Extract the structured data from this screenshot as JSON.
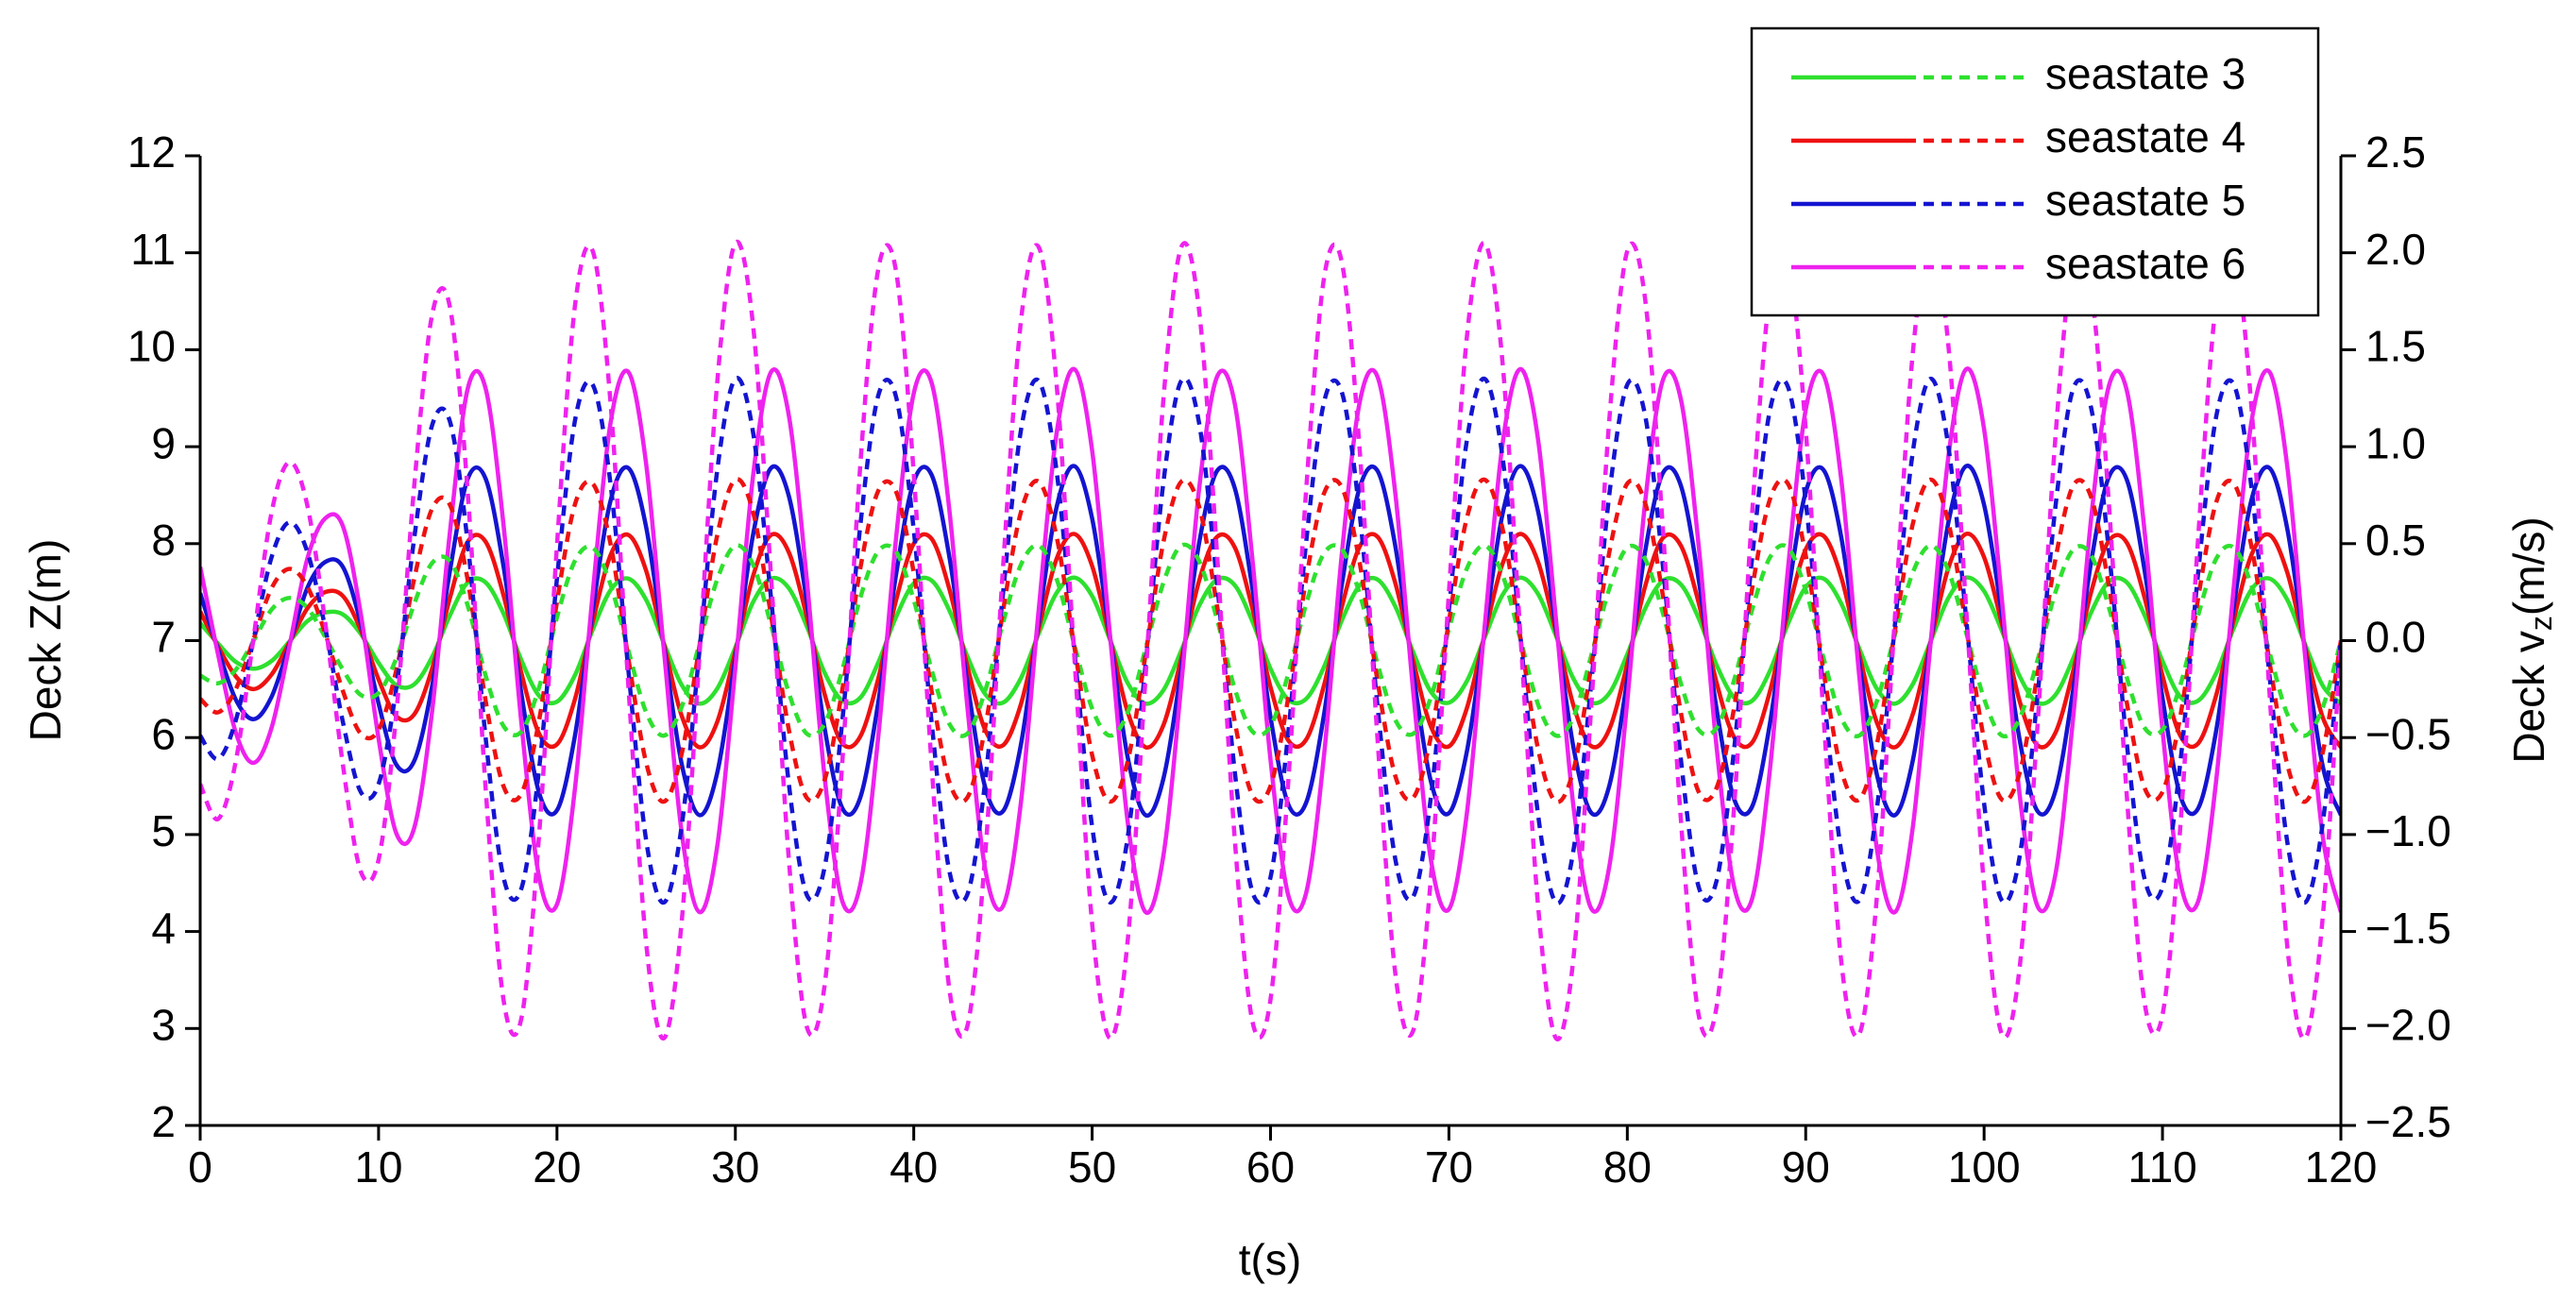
{
  "chart_data": {
    "type": "line",
    "xlabel": "t(s)",
    "ylabel": "Deck Z(m)",
    "y2label": [
      "Deck v",
      "z",
      "(m/s)"
    ],
    "xlim": [
      0,
      120
    ],
    "xticks": [
      0,
      10,
      20,
      30,
      40,
      50,
      60,
      70,
      80,
      90,
      100,
      110,
      120
    ],
    "ylim": [
      2,
      12
    ],
    "yticks": [
      2,
      3,
      4,
      5,
      6,
      7,
      8,
      9,
      10,
      11,
      12
    ],
    "y2lim": [
      -2.5,
      2.5
    ],
    "y2ticks": [
      {
        "value": -2.5,
        "label": "−2.5"
      },
      {
        "value": -2.0,
        "label": "−2.0"
      },
      {
        "value": -1.5,
        "label": "−1.5"
      },
      {
        "value": -1.0,
        "label": "−1.0"
      },
      {
        "value": -0.5,
        "label": "−0.5"
      },
      {
        "value": 0,
        "label": "0.0"
      },
      0.5,
      {
        "value": 1,
        "label": "1.0"
      },
      1.5,
      {
        "value": 2,
        "label": "2.0"
      },
      2.5
    ],
    "legend": "upper right",
    "grid": false,
    "x": [
      0,
      1,
      2,
      3,
      4,
      5,
      6,
      7,
      8,
      9,
      10,
      11,
      12,
      13,
      14,
      15,
      16,
      17,
      18,
      19,
      20,
      21,
      22,
      23,
      24,
      25,
      26,
      27,
      28,
      29,
      30,
      31,
      32,
      33,
      34,
      35,
      36,
      37,
      38,
      39,
      40,
      41,
      42,
      43,
      44,
      45,
      46,
      47,
      48,
      49,
      50,
      51,
      52,
      53,
      54,
      55,
      56,
      57,
      58,
      59,
      60,
      61,
      62,
      63,
      64,
      65,
      66,
      67,
      68,
      69,
      70,
      71,
      72,
      73,
      74,
      75,
      76,
      77,
      78,
      79,
      80,
      81,
      82,
      83,
      84,
      85,
      86,
      87,
      88,
      89,
      90,
      91,
      92,
      93,
      94,
      95,
      96,
      97,
      98,
      99,
      100,
      101,
      102,
      103,
      104,
      105,
      106,
      107,
      108,
      109,
      110,
      111,
      112,
      113,
      114,
      115,
      116,
      117,
      118,
      119,
      120
    ],
    "series": [
      {
        "name": "seastate 3",
        "color": "#2ee02e",
        "values": [
          7.18,
          6.97,
          6.78,
          6.71,
          6.79,
          6.99,
          7.2,
          7.29,
          7.27,
          7.07,
          6.77,
          6.54,
          6.55,
          6.83,
          7.26,
          7.6,
          7.6,
          7.28,
          6.8,
          6.43,
          6.37,
          6.64,
          7.11,
          7.52,
          7.64,
          7.42,
          6.97,
          6.54,
          6.35,
          6.51,
          6.93,
          7.4,
          7.64,
          7.54,
          7.15,
          6.67,
          6.38,
          6.41,
          6.77,
          7.24,
          7.59,
          7.62,
          7.31,
          6.84,
          6.45,
          6.36,
          6.61,
          7.07,
          7.49,
          7.65,
          7.46,
          7.01,
          6.56,
          6.35,
          6.49,
          6.9,
          7.36,
          7.63,
          7.57,
          7.19,
          6.71,
          6.39,
          6.4,
          6.73,
          7.21,
          7.57,
          7.63,
          7.35,
          6.88,
          6.47,
          6.36,
          6.58,
          7.03,
          7.47,
          7.65,
          7.48,
          7.05,
          6.6,
          6.36,
          6.46,
          6.86,
          7.33,
          7.62,
          7.58,
          7.23,
          6.75,
          6.41,
          6.38,
          6.69,
          7.17,
          7.55,
          7.64,
          7.38,
          6.92,
          6.5,
          6.35,
          6.55,
          6.99,
          7.44,
          7.65,
          7.51,
          7.1,
          6.63,
          6.36,
          6.44,
          6.82,
          7.29,
          7.61,
          7.6,
          7.26,
          6.79,
          6.42,
          6.38,
          6.66,
          7.13,
          7.53,
          7.64,
          7.42,
          6.96,
          6.53,
          6.35
        ]
      },
      {
        "name": "seastate 4",
        "color": "#ee1111",
        "values": [
          7.3,
          6.94,
          6.63,
          6.5,
          6.65,
          6.98,
          7.33,
          7.5,
          7.46,
          7.11,
          6.6,
          6.22,
          6.24,
          6.71,
          7.44,
          8.02,
          8.02,
          7.47,
          6.67,
          6.04,
          5.93,
          6.39,
          7.19,
          7.88,
          8.09,
          7.72,
          6.96,
          6.22,
          5.9,
          6.17,
          6.89,
          7.67,
          8.09,
          7.91,
          7.25,
          6.45,
          5.94,
          6.01,
          6.6,
          7.41,
          8.0,
          8.05,
          7.53,
          6.74,
          6.08,
          5.92,
          6.34,
          7.12,
          7.84,
          8.1,
          7.77,
          7.02,
          6.26,
          5.9,
          6.13,
          6.82,
          7.62,
          8.07,
          7.96,
          7.32,
          6.52,
          5.97,
          5.98,
          6.54,
          7.35,
          7.97,
          8.07,
          7.59,
          6.79,
          6.11,
          5.91,
          6.3,
          7.06,
          7.79,
          8.1,
          7.81,
          7.09,
          6.32,
          5.91,
          6.09,
          6.76,
          7.56,
          8.06,
          7.98,
          7.39,
          6.57,
          6.0,
          5.95,
          6.48,
          7.29,
          7.94,
          8.08,
          7.65,
          6.86,
          6.15,
          5.9,
          6.24,
          6.99,
          7.75,
          8.1,
          7.86,
          7.17,
          6.37,
          5.92,
          6.05,
          6.69,
          7.5,
          8.03,
          8.01,
          7.44,
          6.64,
          6.02,
          5.94,
          6.43,
          7.22,
          7.89,
          8.09,
          7.7,
          6.93,
          6.2,
          5.9
        ]
      },
      {
        "name": "seastate 5",
        "color": "#1414d0",
        "values": [
          7.49,
          6.91,
          6.39,
          6.19,
          6.42,
          6.96,
          7.54,
          7.81,
          7.76,
          7.18,
          6.35,
          5.72,
          5.76,
          6.53,
          7.72,
          8.67,
          8.67,
          7.77,
          6.46,
          5.43,
          5.25,
          6.01,
          7.31,
          8.44,
          8.78,
          8.17,
          6.93,
          5.72,
          5.2,
          5.65,
          6.82,
          8.1,
          8.78,
          8.49,
          7.41,
          6.1,
          5.27,
          5.38,
          6.35,
          7.67,
          8.64,
          8.71,
          7.86,
          6.57,
          5.49,
          5.24,
          5.92,
          7.2,
          8.37,
          8.8,
          8.26,
          7.04,
          5.79,
          5.2,
          5.58,
          6.71,
          8.01,
          8.75,
          8.57,
          7.52,
          6.21,
          5.31,
          5.33,
          6.24,
          7.58,
          8.58,
          8.75,
          7.97,
          6.66,
          5.54,
          5.22,
          5.85,
          7.09,
          8.3,
          8.8,
          8.33,
          7.14,
          5.88,
          5.22,
          5.51,
          6.6,
          7.92,
          8.73,
          8.6,
          7.63,
          6.3,
          5.36,
          5.29,
          6.15,
          7.47,
          8.53,
          8.76,
          8.06,
          6.77,
          5.61,
          5.2,
          5.76,
          6.98,
          8.22,
          8.8,
          8.4,
          7.27,
          5.97,
          5.24,
          5.45,
          6.5,
          7.81,
          8.69,
          8.66,
          7.72,
          6.41,
          5.4,
          5.27,
          6.06,
          7.36,
          8.46,
          8.78,
          8.15,
          6.89,
          5.69,
          5.2
        ]
      },
      {
        "name": "seastate 6",
        "color": "#ee22ee",
        "values": [
          7.76,
          6.86,
          6.05,
          5.74,
          6.1,
          6.94,
          7.84,
          8.26,
          8.18,
          7.28,
          5.99,
          5.01,
          5.07,
          6.27,
          8.12,
          9.6,
          9.6,
          8.2,
          6.16,
          4.56,
          4.28,
          5.46,
          7.48,
          9.24,
          9.77,
          8.82,
          6.89,
          5.01,
          4.2,
          4.9,
          6.72,
          8.71,
          9.77,
          9.32,
          7.64,
          5.6,
          4.31,
          4.48,
          5.99,
          8.04,
          9.55,
          9.66,
          8.34,
          6.33,
          4.65,
          4.26,
          5.32,
          7.31,
          9.13,
          9.8,
          8.96,
          7.06,
          5.12,
          4.2,
          4.79,
          6.55,
          8.57,
          9.72,
          9.44,
          7.81,
          5.77,
          4.37,
          4.4,
          5.82,
          7.9,
          9.46,
          9.72,
          8.51,
          6.47,
          4.73,
          4.23,
          5.21,
          7.14,
          9.02,
          9.8,
          9.07,
          7.22,
          5.26,
          4.23,
          4.68,
          6.38,
          8.43,
          9.69,
          9.49,
          7.98,
          5.91,
          4.45,
          4.34,
          5.68,
          7.73,
          9.38,
          9.74,
          8.65,
          6.64,
          4.84,
          4.2,
          5.07,
          6.97,
          8.9,
          9.8,
          9.18,
          7.42,
          5.4,
          4.26,
          4.59,
          6.22,
          8.26,
          9.63,
          9.58,
          8.12,
          6.08,
          4.51,
          4.31,
          5.54,
          7.56,
          9.27,
          9.77,
          8.79,
          6.83,
          4.96,
          4.2
        ]
      },
      {
        "color": "#2ee02e",
        "axis": "y2",
        "dashed": true,
        "values": [
          -0.18,
          -0.22,
          -0.15,
          0.0,
          0.16,
          0.22,
          0.17,
          0.02,
          -0.15,
          -0.28,
          -0.27,
          -0.09,
          0.19,
          0.4,
          0.41,
          0.18,
          -0.18,
          -0.44,
          -0.47,
          -0.24,
          0.12,
          0.41,
          0.48,
          0.29,
          -0.05,
          -0.37,
          -0.49,
          -0.34,
          -0.01,
          0.32,
          0.49,
          0.39,
          0.08,
          -0.27,
          -0.48,
          -0.43,
          -0.15,
          0.22,
          0.46,
          0.46,
          0.21,
          -0.15,
          -0.43,
          -0.48,
          -0.26,
          0.09,
          0.39,
          0.49,
          0.32,
          -0.02,
          -0.35,
          -0.49,
          -0.37,
          -0.04,
          0.3,
          0.49,
          0.41,
          0.11,
          -0.25,
          -0.47,
          -0.44,
          -0.17,
          0.19,
          0.45,
          0.47,
          0.24,
          -0.12,
          -0.41,
          -0.48,
          -0.29,
          0.06,
          0.37,
          0.49,
          0.34,
          0.01,
          -0.33,
          -0.49,
          -0.39,
          -0.07,
          0.27,
          0.48,
          0.42,
          0.14,
          -0.22,
          -0.46,
          -0.45,
          -0.2,
          0.16,
          0.43,
          0.48,
          0.26,
          -0.09,
          -0.4,
          -0.49,
          -0.31,
          0.03,
          0.35,
          0.49,
          0.36,
          0.04,
          -0.3,
          -0.49,
          -0.4,
          -0.1,
          0.25,
          0.47,
          0.44,
          0.17,
          -0.19,
          -0.45,
          -0.46,
          -0.23,
          0.13,
          0.42,
          0.48,
          0.28,
          -0.06,
          -0.38,
          -0.49,
          -0.34,
          0.0
        ]
      },
      {
        "color": "#ee1111",
        "axis": "y2",
        "dashed": true,
        "values": [
          -0.3,
          -0.37,
          -0.25,
          0.01,
          0.27,
          0.37,
          0.28,
          0.04,
          -0.26,
          -0.48,
          -0.46,
          -0.15,
          0.32,
          0.68,
          0.7,
          0.31,
          -0.31,
          -0.75,
          -0.79,
          -0.41,
          0.2,
          0.7,
          0.81,
          0.5,
          -0.09,
          -0.63,
          -0.83,
          -0.58,
          -0.02,
          0.55,
          0.83,
          0.66,
          0.13,
          -0.46,
          -0.81,
          -0.72,
          -0.25,
          0.37,
          0.77,
          0.77,
          0.35,
          -0.26,
          -0.73,
          -0.81,
          -0.45,
          0.15,
          0.66,
          0.82,
          0.54,
          -0.03,
          -0.59,
          -0.83,
          -0.62,
          -0.07,
          0.51,
          0.82,
          0.69,
          0.18,
          -0.42,
          -0.8,
          -0.75,
          -0.29,
          0.32,
          0.76,
          0.79,
          0.4,
          -0.21,
          -0.7,
          -0.81,
          -0.49,
          0.1,
          0.63,
          0.83,
          0.58,
          0.02,
          -0.56,
          -0.83,
          -0.66,
          -0.12,
          0.46,
          0.81,
          0.71,
          0.23,
          -0.37,
          -0.78,
          -0.76,
          -0.34,
          0.27,
          0.73,
          0.81,
          0.44,
          -0.16,
          -0.67,
          -0.82,
          -0.53,
          0.05,
          0.6,
          0.83,
          0.61,
          0.07,
          -0.51,
          -0.82,
          -0.68,
          -0.17,
          0.42,
          0.8,
          0.74,
          0.28,
          -0.32,
          -0.76,
          -0.78,
          -0.39,
          0.22,
          0.71,
          0.81,
          0.48,
          -0.11,
          -0.64,
          -0.83,
          -0.57,
          0.0
        ]
      },
      {
        "color": "#1414d0",
        "axis": "y2",
        "dashed": true,
        "values": [
          -0.49,
          -0.61,
          -0.41,
          0.01,
          0.43,
          0.61,
          0.46,
          0.07,
          -0.42,
          -0.78,
          -0.74,
          -0.24,
          0.53,
          1.11,
          1.13,
          0.5,
          -0.5,
          -1.22,
          -1.28,
          -0.66,
          0.32,
          1.13,
          1.32,
          0.81,
          -0.15,
          -1.03,
          -1.35,
          -0.95,
          -0.04,
          0.89,
          1.35,
          1.07,
          0.22,
          -0.74,
          -1.31,
          -1.17,
          -0.41,
          0.59,
          1.26,
          1.26,
          0.57,
          -0.42,
          -1.19,
          -1.31,
          -0.73,
          0.24,
          1.08,
          1.34,
          0.88,
          -0.05,
          -0.96,
          -1.35,
          -1.01,
          -0.12,
          0.82,
          1.34,
          1.12,
          0.3,
          -0.68,
          -1.3,
          -1.22,
          -0.47,
          0.51,
          1.23,
          1.28,
          0.65,
          -0.34,
          -1.13,
          -1.32,
          -0.8,
          0.16,
          1.03,
          1.35,
          0.95,
          0.03,
          -0.9,
          -1.35,
          -1.07,
          -0.2,
          0.76,
          1.32,
          1.16,
          0.38,
          -0.61,
          -1.27,
          -1.24,
          -0.55,
          0.43,
          1.19,
          1.31,
          0.72,
          -0.26,
          -1.09,
          -1.34,
          -0.86,
          0.08,
          0.97,
          1.35,
          1.0,
          0.11,
          -0.84,
          -1.34,
          -1.11,
          -0.28,
          0.69,
          1.3,
          1.2,
          0.46,
          -0.53,
          -1.23,
          -1.27,
          -0.63,
          0.35,
          1.15,
          1.32,
          0.78,
          -0.18,
          -1.04,
          -1.35,
          -0.93,
          0.0
        ]
      },
      {
        "color": "#ee22ee",
        "axis": "y2",
        "dashed": true,
        "values": [
          -0.74,
          -0.92,
          -0.62,
          0.02,
          0.66,
          0.92,
          0.7,
          0.1,
          -0.64,
          -1.19,
          -1.13,
          -0.37,
          0.8,
          1.68,
          1.72,
          0.76,
          -0.76,
          -1.85,
          -1.95,
          -1.0,
          0.49,
          1.72,
          2.01,
          1.23,
          -0.23,
          -1.56,
          -2.05,
          -1.44,
          -0.06,
          1.35,
          2.05,
          1.62,
          0.33,
          -1.13,
          -1.99,
          -1.78,
          -0.62,
          0.9,
          1.91,
          1.91,
          0.86,
          -0.64,
          -1.8,
          -1.99,
          -1.11,
          0.37,
          1.64,
          2.03,
          1.33,
          -0.08,
          -1.46,
          -2.05,
          -1.54,
          -0.18,
          1.25,
          2.03,
          1.7,
          0.45,
          -1.03,
          -1.97,
          -1.85,
          -0.72,
          0.78,
          1.87,
          1.95,
          0.98,
          -0.51,
          -1.72,
          -2.01,
          -1.21,
          0.25,
          1.56,
          2.05,
          1.44,
          0.04,
          -1.37,
          -2.05,
          -1.62,
          -0.31,
          1.15,
          2.01,
          1.76,
          0.57,
          -0.92,
          -1.93,
          -1.89,
          -0.84,
          0.66,
          1.8,
          1.99,
          1.09,
          -0.39,
          -1.66,
          -2.03,
          -1.31,
          0.12,
          1.48,
          2.05,
          1.52,
          0.16,
          -1.27,
          -2.03,
          -1.68,
          -0.43,
          1.05,
          1.97,
          1.82,
          0.7,
          -0.8,
          -1.87,
          -1.93,
          -0.96,
          0.53,
          1.74,
          2.01,
          1.19,
          -0.27,
          -1.58,
          -2.05,
          -1.41,
          0.0
        ]
      }
    ]
  }
}
